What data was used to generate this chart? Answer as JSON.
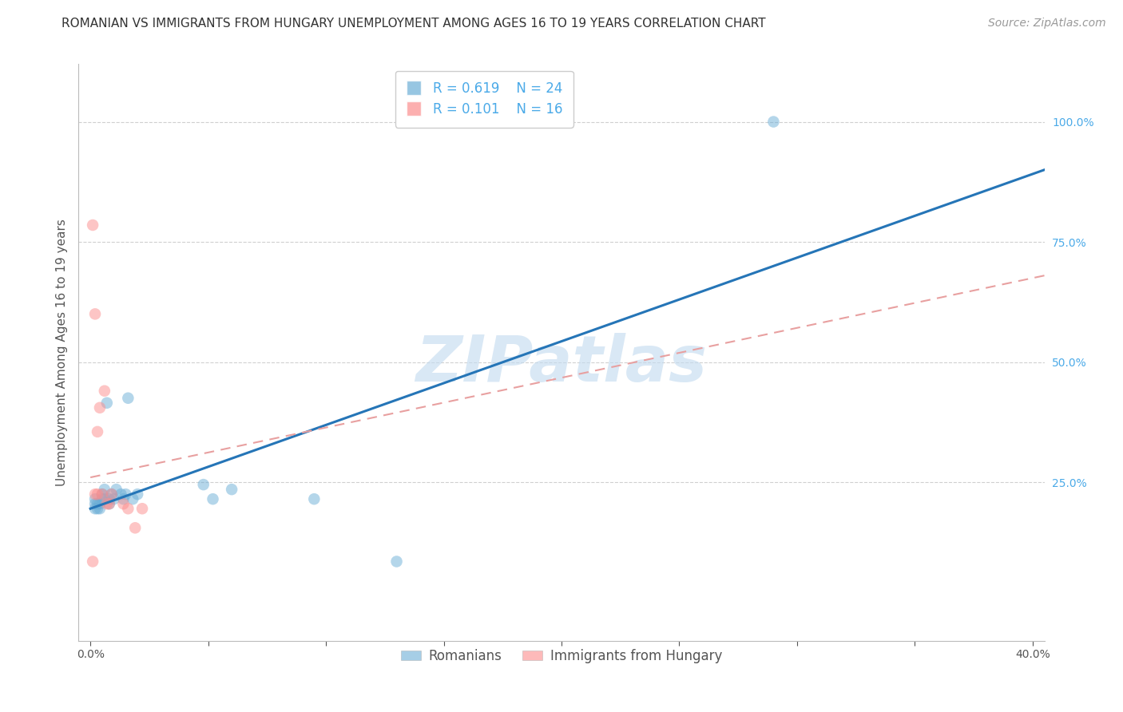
{
  "title": "ROMANIAN VS IMMIGRANTS FROM HUNGARY UNEMPLOYMENT AMONG AGES 16 TO 19 YEARS CORRELATION CHART",
  "source": "Source: ZipAtlas.com",
  "ylabel": "Unemployment Among Ages 16 to 19 years",
  "watermark": "ZIPatlas",
  "xlim": [
    -0.005,
    0.405
  ],
  "ylim": [
    -0.08,
    1.12
  ],
  "xtick_labels_shown": [
    "0.0%",
    "40.0%"
  ],
  "xtick_shown_vals": [
    0.0,
    0.4
  ],
  "yticks_right": [
    0.25,
    0.5,
    0.75,
    1.0
  ],
  "ytick_labels_right": [
    "25.0%",
    "50.0%",
    "75.0%",
    "100.0%"
  ],
  "blue_color": "#6baed6",
  "pink_color": "#fc8d8d",
  "line_blue_color": "#2575b7",
  "line_pink_color": "#e8a0a0",
  "grid_color": "#d0d0d0",
  "axis_color": "#bbbbbb",
  "right_tick_color": "#4baae8",
  "romanians_x": [
    0.002,
    0.002,
    0.002,
    0.003,
    0.003,
    0.004,
    0.004,
    0.005,
    0.005,
    0.006,
    0.006,
    0.007,
    0.008,
    0.008,
    0.009,
    0.01,
    0.011,
    0.013,
    0.014,
    0.015,
    0.016,
    0.018,
    0.02,
    0.048,
    0.052,
    0.06,
    0.095,
    0.13,
    0.29
  ],
  "romanians_y": [
    0.195,
    0.205,
    0.215,
    0.195,
    0.205,
    0.195,
    0.205,
    0.215,
    0.225,
    0.215,
    0.235,
    0.415,
    0.205,
    0.215,
    0.225,
    0.215,
    0.235,
    0.225,
    0.215,
    0.225,
    0.425,
    0.215,
    0.225,
    0.245,
    0.215,
    0.235,
    0.215,
    0.085,
    1.0
  ],
  "hungary_x": [
    0.001,
    0.001,
    0.002,
    0.002,
    0.003,
    0.003,
    0.004,
    0.005,
    0.006,
    0.007,
    0.008,
    0.009,
    0.014,
    0.016,
    0.019,
    0.022
  ],
  "hungary_y": [
    0.785,
    0.085,
    0.6,
    0.225,
    0.225,
    0.355,
    0.405,
    0.225,
    0.44,
    0.205,
    0.205,
    0.225,
    0.205,
    0.195,
    0.155,
    0.195
  ],
  "blue_regression_x0": 0.0,
  "blue_regression_y0": 0.195,
  "blue_regression_x1": 0.405,
  "blue_regression_y1": 0.9,
  "pink_regression_x0": 0.0,
  "pink_regression_y0": 0.26,
  "pink_regression_x1": 0.405,
  "pink_regression_y1": 0.68,
  "title_fontsize": 11,
  "source_fontsize": 10,
  "label_fontsize": 11,
  "tick_fontsize": 10,
  "legend_fontsize": 12,
  "watermark_fontsize": 58,
  "marker_size": 110,
  "marker_alpha": 0.5,
  "num_xticks": 9
}
